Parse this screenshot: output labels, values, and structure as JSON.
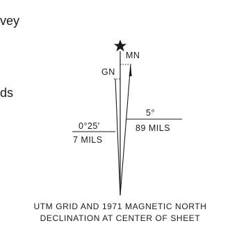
{
  "fragments": {
    "line1": "vey",
    "line2": "ds"
  },
  "diagram": {
    "labels": {
      "mn": "MN",
      "gn": "GN",
      "left_top": "0°25′",
      "left_bottom": "7 MILS",
      "right_top": "5°",
      "right_bottom": "89 MILS"
    },
    "caption": {
      "line1": "UTM GRID AND 1971 MAGNETIC NORTH",
      "line2": "DECLINATION AT CENTER OF SHEET"
    },
    "colors": {
      "ink": "#1a1a1a"
    }
  }
}
